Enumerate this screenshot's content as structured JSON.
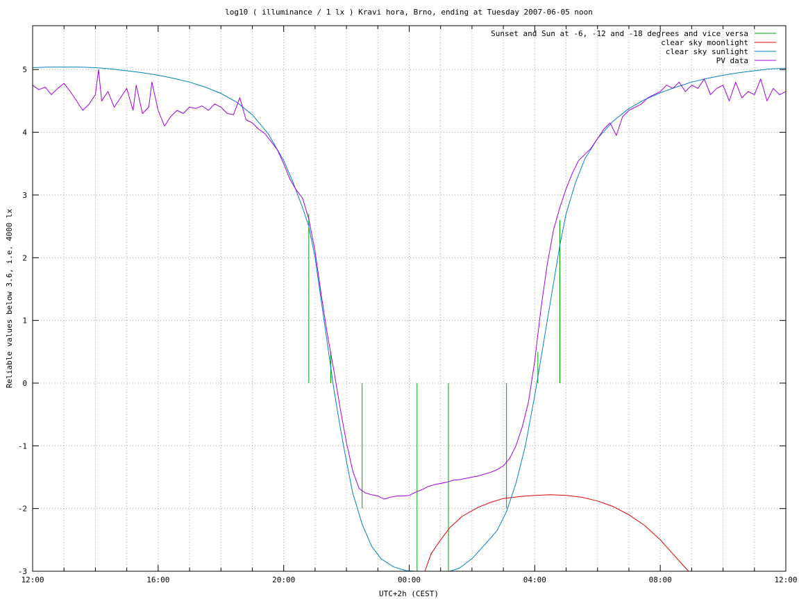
{
  "chart_data": {
    "type": "line",
    "title": "log10 ( illuminance / 1 lx ) Kravi hora, Brno, ending at Tuesday 2007-06-05 noon",
    "xlabel": "UTC+2h (CEST)",
    "ylabel": "Reliable values below 3.6, i.e. 4000 lx",
    "x_unit": "hours after 12:00 local time (CEST) on 2007-06-04",
    "xlim": [
      0,
      24
    ],
    "ylim": [
      -3,
      5.7
    ],
    "x_major_ticks": [
      0,
      4,
      8,
      12,
      16,
      20,
      24
    ],
    "x_tick_labels": [
      "12:00",
      "16:00",
      "20:00",
      "00:00",
      "04:00",
      "08:00",
      "12:00"
    ],
    "x_minor_step": 1,
    "y_ticks": [
      -3,
      -2,
      -1,
      0,
      1,
      2,
      3,
      4,
      5
    ],
    "y_tick_labels": [
      "-3",
      "-2",
      "-1",
      "0",
      "1",
      "2",
      "3",
      "4",
      "5"
    ],
    "grid": true,
    "legend_position": "top-right",
    "series": [
      {
        "name": "Sunset and Sun at -6, -12 and -18 degrees and vice versa",
        "color": "#00a000",
        "kind": "vertical-markers",
        "markers": [
          {
            "x": 8.8,
            "y_from": 0,
            "y_to": 2.7
          },
          {
            "x": 9.5,
            "y_from": 0,
            "y_to": 0.5
          },
          {
            "x": 10.5,
            "y_from": 0,
            "y_to": -2.0
          },
          {
            "x": 12.25,
            "y_from": 0,
            "y_to": -3
          },
          {
            "x": 13.25,
            "y_from": 0,
            "y_to": -3
          },
          {
            "x": 15.1,
            "y_from": 0,
            "y_to": -2.0
          },
          {
            "x": 16.1,
            "y_from": 0,
            "y_to": 0.5
          },
          {
            "x": 16.8,
            "y_from": 0,
            "y_to": 2.6
          }
        ]
      },
      {
        "name": "clear sky moonlight",
        "color": "#e00000",
        "kind": "line",
        "x": [
          12.5,
          12.7,
          13.0,
          13.3,
          13.7,
          14.2,
          14.6,
          15.0,
          15.5,
          16.0,
          16.5,
          17.0,
          17.5,
          18.0,
          18.5,
          19.0,
          19.5,
          20.0,
          20.5,
          20.9
        ],
        "values": [
          -3.0,
          -2.72,
          -2.5,
          -2.3,
          -2.12,
          -1.98,
          -1.9,
          -1.84,
          -1.81,
          -1.79,
          -1.78,
          -1.79,
          -1.82,
          -1.88,
          -1.97,
          -2.1,
          -2.27,
          -2.5,
          -2.78,
          -3.0
        ]
      },
      {
        "name": "clear sky sunlight",
        "color": "#0080c0",
        "kind": "line",
        "x": [
          0,
          0.5,
          1,
          1.5,
          2,
          2.5,
          3,
          3.5,
          4,
          4.5,
          5,
          5.5,
          6,
          6.5,
          7,
          7.5,
          8,
          8.3,
          8.6,
          8.8,
          9.0,
          9.2,
          9.4,
          9.6,
          9.8,
          10.0,
          10.2,
          10.5,
          10.8,
          11.1,
          11.5,
          11.9,
          12.2,
          12.3,
          13.3,
          13.6,
          14.0,
          14.4,
          14.8,
          15.1,
          15.4,
          15.7,
          16.0,
          16.2,
          16.4,
          16.6,
          16.8,
          17.0,
          17.3,
          17.6,
          18.0,
          18.5,
          19.0,
          19.5,
          20.0,
          20.5,
          21.0,
          21.5,
          22.0,
          22.5,
          23.0,
          23.5,
          24.0
        ],
        "values": [
          5.03,
          5.04,
          5.04,
          5.04,
          5.03,
          5.01,
          4.98,
          4.95,
          4.91,
          4.86,
          4.8,
          4.72,
          4.62,
          4.48,
          4.28,
          3.98,
          3.55,
          3.2,
          2.8,
          2.5,
          2.0,
          1.3,
          0.6,
          -0.1,
          -0.7,
          -1.25,
          -1.75,
          -2.25,
          -2.6,
          -2.8,
          -2.93,
          -2.99,
          -3.0,
          -3.0,
          -3.0,
          -2.95,
          -2.8,
          -2.58,
          -2.35,
          -2.05,
          -1.6,
          -1.0,
          -0.2,
          0.4,
          1.0,
          1.6,
          2.2,
          2.7,
          3.2,
          3.58,
          3.9,
          4.18,
          4.38,
          4.52,
          4.63,
          4.72,
          4.8,
          4.86,
          4.91,
          4.95,
          4.98,
          5.01,
          5.02
        ]
      },
      {
        "name": "PV data",
        "color": "#a000e0",
        "kind": "line",
        "x": [
          0,
          0.2,
          0.4,
          0.6,
          0.8,
          1.0,
          1.2,
          1.4,
          1.6,
          1.8,
          2.0,
          2.1,
          2.2,
          2.4,
          2.6,
          2.8,
          3.0,
          3.2,
          3.3,
          3.5,
          3.7,
          3.8,
          4.0,
          4.2,
          4.4,
          4.6,
          4.8,
          5.0,
          5.2,
          5.4,
          5.6,
          5.8,
          6.0,
          6.2,
          6.4,
          6.6,
          6.8,
          7.0,
          7.2,
          7.4,
          7.6,
          7.8,
          8.0,
          8.2,
          8.4,
          8.6,
          8.8,
          9.0,
          9.2,
          9.4,
          9.6,
          9.8,
          10.0,
          10.2,
          10.4,
          10.6,
          10.8,
          11.0,
          11.2,
          11.4,
          11.6,
          11.8,
          12.0,
          12.2,
          12.4,
          12.6,
          12.8,
          13.0,
          13.2,
          13.4,
          13.6,
          13.8,
          14.0,
          14.2,
          14.4,
          14.6,
          14.8,
          15.0,
          15.2,
          15.4,
          15.6,
          15.8,
          16.0,
          16.2,
          16.4,
          16.6,
          16.8,
          17.0,
          17.2,
          17.4,
          17.6,
          17.8,
          18.0,
          18.2,
          18.4,
          18.6,
          18.8,
          19.0,
          19.2,
          19.4,
          19.6,
          19.8,
          20.0,
          20.2,
          20.4,
          20.6,
          20.8,
          21.0,
          21.2,
          21.4,
          21.6,
          21.8,
          22.0,
          22.2,
          22.4,
          22.6,
          22.8,
          23.0,
          23.2,
          23.4,
          23.6,
          23.8,
          24.0
        ],
        "values": [
          4.75,
          4.68,
          4.72,
          4.6,
          4.7,
          4.78,
          4.65,
          4.5,
          4.35,
          4.45,
          4.6,
          5.0,
          4.5,
          4.65,
          4.4,
          4.55,
          4.7,
          4.35,
          4.75,
          4.3,
          4.4,
          4.8,
          4.35,
          4.1,
          4.25,
          4.35,
          4.3,
          4.4,
          4.38,
          4.42,
          4.35,
          4.45,
          4.4,
          4.3,
          4.28,
          4.55,
          4.2,
          4.15,
          4.05,
          3.98,
          3.85,
          3.72,
          3.5,
          3.25,
          3.08,
          2.95,
          2.62,
          2.1,
          1.4,
          0.75,
          0.2,
          -0.4,
          -0.95,
          -1.4,
          -1.68,
          -1.75,
          -1.78,
          -1.8,
          -1.85,
          -1.82,
          -1.8,
          -1.8,
          -1.79,
          -1.74,
          -1.7,
          -1.65,
          -1.62,
          -1.6,
          -1.58,
          -1.55,
          -1.54,
          -1.52,
          -1.5,
          -1.48,
          -1.45,
          -1.42,
          -1.38,
          -1.32,
          -1.2,
          -1.0,
          -0.7,
          -0.3,
          0.35,
          1.2,
          1.9,
          2.45,
          2.8,
          3.1,
          3.35,
          3.55,
          3.65,
          3.75,
          3.9,
          4.05,
          4.15,
          3.95,
          4.25,
          4.35,
          4.4,
          4.45,
          4.55,
          4.6,
          4.65,
          4.75,
          4.7,
          4.8,
          4.65,
          4.75,
          4.7,
          4.85,
          4.6,
          4.7,
          4.75,
          4.5,
          4.8,
          4.55,
          4.65,
          4.6,
          4.85,
          4.5,
          4.7,
          4.6,
          4.65
        ]
      }
    ]
  }
}
